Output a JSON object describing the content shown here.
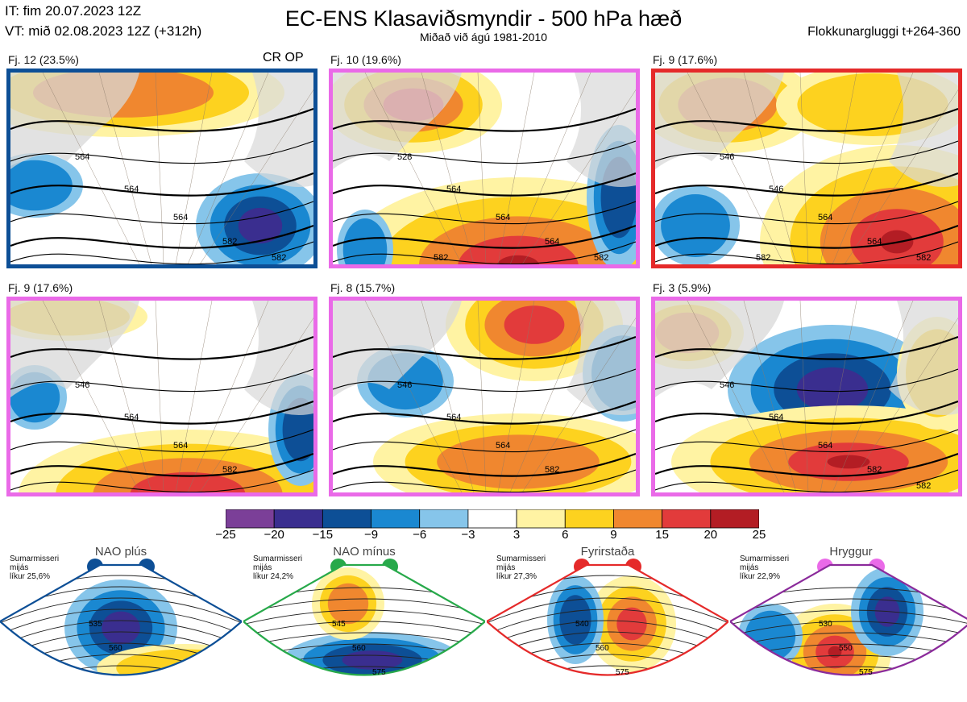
{
  "header": {
    "init_time": "IT: fim 20.07.2023 12Z",
    "valid_time": "VT: mið 02.08.2023 12Z  (+312h)",
    "title": "EC-ENS Klasaviðsmyndir - 500 hPa hæð",
    "subtitle": "Miðað við ágú 1981-2010",
    "window": "Flokkunargluggi t+264-360"
  },
  "clusters": [
    {
      "label": "Fj. 12 (23.5%)",
      "tag": "CR OP",
      "border_color": "#0d4f96",
      "contour_labels": [
        "564",
        "564",
        "564",
        "582",
        "582"
      ],
      "anomaly": "trough-east"
    },
    {
      "label": "Fj. 10 (19.6%)",
      "tag": "",
      "border_color": "#ea6ae8",
      "contour_labels": [
        "528",
        "564",
        "564",
        "564",
        "582",
        "582"
      ],
      "anomaly": "ridge-south"
    },
    {
      "label": "Fj. 9 (17.6%)",
      "tag": "",
      "border_color": "#e52a2a",
      "contour_labels": [
        "546",
        "546",
        "564",
        "564",
        "582",
        "582"
      ],
      "anomaly": "ridge-east"
    },
    {
      "label": "Fj. 9 (17.6%)",
      "tag": "",
      "border_color": "#ea6ae8",
      "contour_labels": [
        "546",
        "564",
        "564",
        "582"
      ],
      "anomaly": "weak-south"
    },
    {
      "label": "Fj. 8 (15.7%)",
      "tag": "",
      "border_color": "#ea6ae8",
      "contour_labels": [
        "546",
        "564",
        "564",
        "582"
      ],
      "anomaly": "ridge-north"
    },
    {
      "label": "Fj. 3 (5.9%)",
      "tag": "",
      "border_color": "#ea6ae8",
      "contour_labels": [
        "546",
        "564",
        "564",
        "582",
        "582"
      ],
      "anomaly": "trough-north-ridge-south"
    }
  ],
  "colorbar": {
    "ticks": [
      "−25",
      "−20",
      "−15",
      "−9",
      "−6",
      "−3",
      "3",
      "6",
      "9",
      "15",
      "20",
      "25"
    ],
    "colors": [
      "#7b3f98",
      "#3a2e8f",
      "#0d4f96",
      "#1a88d1",
      "#86c5ea",
      "#ffffff",
      "#fff3a3",
      "#fdd21f",
      "#f0872f",
      "#e23b3b",
      "#b31d24"
    ]
  },
  "regimes": [
    {
      "name": "NAO plús",
      "season": [
        "Sumarmisseri",
        "mijás",
        "líkur 25,6%"
      ],
      "dot_color": "#0d4f96",
      "frame_color": "#0d4f96",
      "contour_labels": [
        "535",
        "560"
      ]
    },
    {
      "name": "NAO mínus",
      "season": [
        "Sumarmisseri",
        "mijás",
        "líkur 24,2%"
      ],
      "dot_color": "#27a94a",
      "frame_color": "#27a94a",
      "contour_labels": [
        "545",
        "560",
        "575"
      ]
    },
    {
      "name": "Fyrirstaða",
      "season": [
        "Sumarmisseri",
        "mijás",
        "líkur 27,3%"
      ],
      "dot_color": "#e52a2a",
      "frame_color": "#e52a2a",
      "contour_labels": [
        "540",
        "560",
        "575"
      ]
    },
    {
      "name": "Hryggur",
      "season": [
        "Sumarmisseri",
        "mijás",
        "líkur 22,9%"
      ],
      "dot_color": "#ea6ae8",
      "frame_color": "#8b2b9b",
      "contour_labels": [
        "530",
        "550",
        "575"
      ]
    }
  ]
}
